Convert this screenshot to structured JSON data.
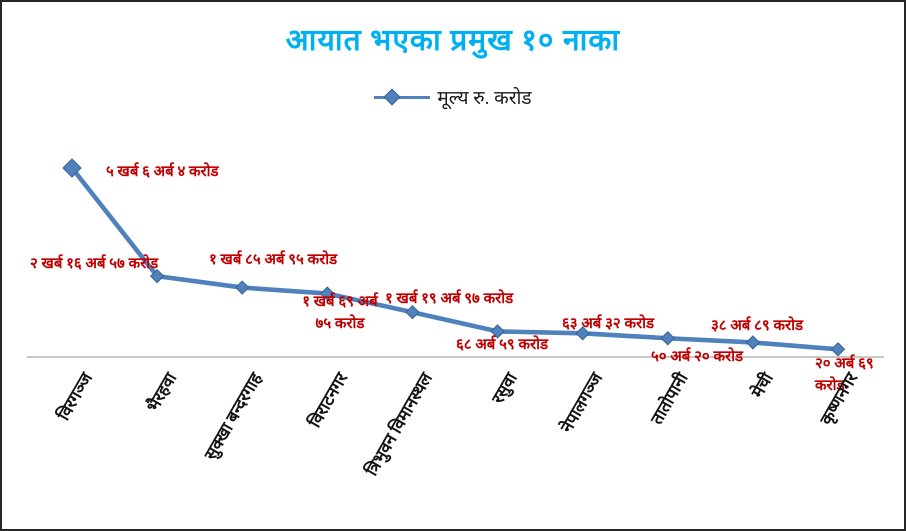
{
  "page": {
    "window_title": "आयात भएका प्रमुख १० नाका"
  },
  "chart_data": {
    "type": "line",
    "title": "आयात भएका प्रमुख १० नाका",
    "legend": "मूल्य रु. करोड",
    "legend_position": "top",
    "grid": false,
    "categories": [
      "विरगञ्ज",
      "भैरहवा",
      "सुक्खा बन्दरगाह",
      "विराटनगर",
      "त्रिभुवन विमानस्थल",
      "रसुवा",
      "नेपालगञ्ज",
      "तातोपानी",
      "मेची",
      "कृष्णनगर"
    ],
    "values_crore": [
      50604,
      21657,
      18595,
      16975,
      11997,
      6859,
      6332,
      5020,
      3889,
      2069
    ],
    "data_labels": [
      "५ खर्ब ६ अर्ब ४ करोड",
      "२ खर्ब १६ अर्ब ५७ करोड",
      "१ खर्ब ८५ अर्ब ९५ करोड",
      "१ खर्ब ६९ अर्ब\n७५ करोड",
      "१ खर्ब १९ अर्ब ९७ करोड",
      "६८ अर्ब ५९ करोड",
      "६३ अर्ब ३२ करोड",
      "५० अर्ब २० करोड",
      "३८ अर्ब ८९ करोड",
      "२० अर्ब ६९ करोड"
    ],
    "ylim": [
      0,
      55000
    ],
    "colors": {
      "title": "#00B0F0",
      "line": "#4F81BD",
      "marker_fill": "#4F81BD",
      "marker_edge": "#396295",
      "data_label": "#C00000",
      "axis_line": "#A6A6A6",
      "category_label": "#141414"
    }
  }
}
